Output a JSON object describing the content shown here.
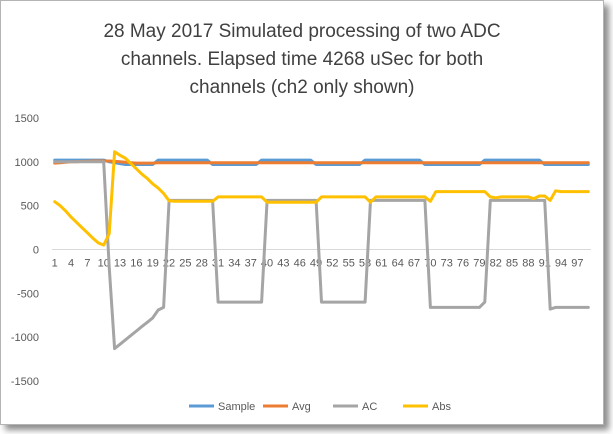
{
  "chart_data": {
    "type": "line",
    "title": "28 May 2017 Simulated processing of two ADC channels.  Elapsed time 4268 uSec for both channels (ch2 only shown)",
    "title_lines": [
      "28 May 2017 Simulated processing of two ADC",
      "channels.  Elapsed time 4268 uSec for both",
      "channels (ch2 only shown)"
    ],
    "xlabel": "",
    "ylabel": "",
    "ylim": [
      -1500,
      1500
    ],
    "yticks": [
      1500,
      1000,
      500,
      0,
      -500,
      -1000,
      -1500
    ],
    "x": [
      1,
      2,
      3,
      4,
      5,
      6,
      7,
      8,
      9,
      10,
      11,
      12,
      13,
      14,
      15,
      16,
      17,
      18,
      19,
      20,
      21,
      22,
      23,
      24,
      25,
      26,
      27,
      28,
      29,
      30,
      31,
      32,
      33,
      34,
      35,
      36,
      37,
      38,
      39,
      40,
      41,
      42,
      43,
      44,
      45,
      46,
      47,
      48,
      49,
      50,
      51,
      52,
      53,
      54,
      55,
      56,
      57,
      58,
      59,
      60,
      61,
      62,
      63,
      64,
      65,
      66,
      67,
      68,
      69,
      70,
      71,
      72,
      73,
      74,
      75,
      76,
      77,
      78,
      79,
      80,
      81,
      82,
      83,
      84,
      85,
      86,
      87,
      88,
      89,
      90,
      91,
      92,
      93,
      94,
      95,
      96,
      97,
      98,
      99
    ],
    "xtick_labels": [
      "1",
      "4",
      "7",
      "10",
      "13",
      "16",
      "19",
      "22",
      "25",
      "28",
      "31",
      "34",
      "37",
      "40",
      "43",
      "46",
      "49",
      "52",
      "55",
      "58",
      "61",
      "64",
      "67",
      "70",
      "73",
      "76",
      "79",
      "82",
      "85",
      "88",
      "91",
      "94",
      "97"
    ],
    "grid": false,
    "legend_position": "bottom",
    "series": [
      {
        "name": "Sample",
        "color": "#5b9bd5",
        "values": [
          1020,
          1020,
          1020,
          1020,
          1020,
          1020,
          1020,
          1020,
          1020,
          1020,
          1000,
          990,
          980,
          970,
          970,
          970,
          970,
          970,
          970,
          1020,
          1020,
          1020,
          1020,
          1020,
          1020,
          1020,
          1020,
          1020,
          1020,
          970,
          970,
          970,
          970,
          970,
          970,
          970,
          970,
          970,
          1020,
          1020,
          1020,
          1020,
          1020,
          1020,
          1020,
          1020,
          1020,
          1020,
          970,
          970,
          970,
          970,
          970,
          970,
          970,
          970,
          970,
          1020,
          1020,
          1020,
          1020,
          1020,
          1020,
          1020,
          1020,
          1020,
          1020,
          1020,
          970,
          970,
          970,
          970,
          970,
          970,
          970,
          970,
          970,
          970,
          970,
          1020,
          1020,
          1020,
          1020,
          1020,
          1020,
          1020,
          1020,
          1020,
          1020,
          1020,
          970,
          970,
          970,
          970,
          970,
          970,
          970,
          970,
          970
        ]
      },
      {
        "name": "Avg",
        "color": "#ed7d31",
        "values": [
          985,
          990,
          995,
          1000,
          1000,
          1005,
          1005,
          1010,
          1010,
          1010,
          1010,
          1005,
          1000,
          995,
          990,
          985,
          985,
          985,
          985,
          990,
          990,
          990,
          990,
          990,
          990,
          990,
          990,
          990,
          990,
          990,
          990,
          990,
          990,
          990,
          990,
          990,
          990,
          990,
          990,
          990,
          990,
          990,
          990,
          990,
          990,
          990,
          990,
          990,
          990,
          990,
          990,
          990,
          990,
          990,
          990,
          990,
          990,
          990,
          990,
          990,
          990,
          990,
          990,
          990,
          990,
          990,
          990,
          990,
          990,
          990,
          990,
          990,
          990,
          990,
          990,
          990,
          990,
          990,
          990,
          990,
          990,
          990,
          990,
          990,
          990,
          990,
          990,
          990,
          990,
          990,
          990,
          990,
          990,
          990,
          990,
          990,
          990,
          990,
          990
        ]
      },
      {
        "name": "AC",
        "color": "#a5a5a5",
        "values": [
          1000,
          1000,
          1000,
          1000,
          1000,
          1000,
          1000,
          1000,
          1000,
          1000,
          -200,
          -1130,
          -1080,
          -1030,
          -980,
          -930,
          -880,
          -830,
          -780,
          -690,
          -660,
          560,
          560,
          560,
          560,
          560,
          560,
          560,
          560,
          560,
          -600,
          -600,
          -600,
          -600,
          -600,
          -600,
          -600,
          -600,
          -600,
          560,
          560,
          560,
          560,
          560,
          560,
          560,
          560,
          560,
          560,
          -600,
          -600,
          -600,
          -600,
          -600,
          -600,
          -600,
          -600,
          -600,
          560,
          560,
          560,
          560,
          560,
          560,
          560,
          560,
          560,
          560,
          560,
          -660,
          -660,
          -660,
          -660,
          -660,
          -660,
          -660,
          -660,
          -660,
          -660,
          -600,
          560,
          560,
          560,
          560,
          560,
          560,
          560,
          560,
          560,
          560,
          560,
          -680,
          -660,
          -660,
          -660,
          -660,
          -660,
          -660,
          -660
        ]
      },
      {
        "name": "Abs",
        "color": "#ffc000",
        "values": [
          545,
          500,
          440,
          370,
          310,
          250,
          190,
          130,
          75,
          50,
          180,
          1115,
          1075,
          1040,
          980,
          920,
          860,
          810,
          750,
          700,
          640,
          555,
          550,
          550,
          550,
          550,
          550,
          550,
          550,
          550,
          600,
          600,
          600,
          600,
          600,
          600,
          600,
          600,
          600,
          540,
          540,
          540,
          540,
          540,
          540,
          540,
          540,
          540,
          540,
          600,
          600,
          600,
          600,
          600,
          600,
          600,
          600,
          600,
          540,
          600,
          600,
          600,
          600,
          600,
          600,
          600,
          600,
          600,
          600,
          550,
          660,
          660,
          660,
          660,
          660,
          660,
          660,
          660,
          660,
          660,
          600,
          590,
          600,
          600,
          600,
          600,
          600,
          600,
          580,
          610,
          610,
          560,
          670,
          660,
          660,
          660,
          660,
          660,
          660
        ]
      }
    ]
  }
}
